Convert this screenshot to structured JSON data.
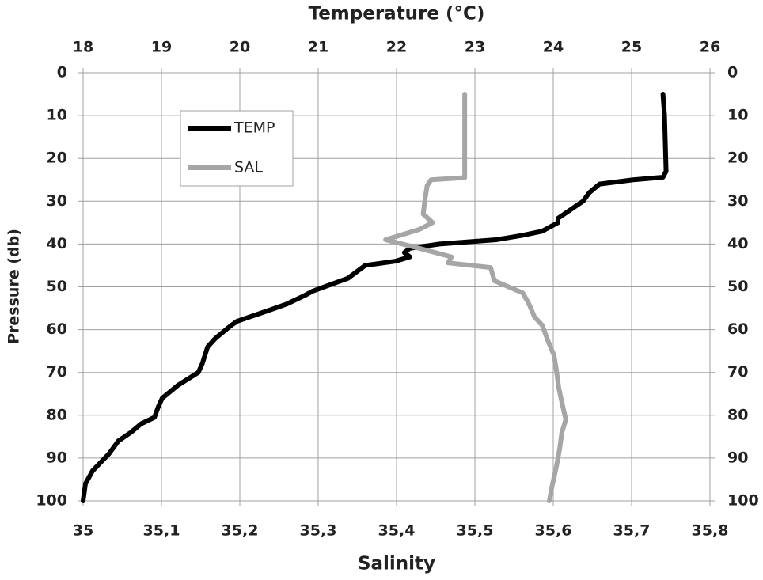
{
  "chart_data": {
    "type": "profile",
    "x_label": "Salinity",
    "x2_label": "Temperature (°C)",
    "y_label": "Pressure (db)",
    "xlim": [
      35,
      35.8
    ],
    "xticks": [
      35,
      {
        "value": 35.1,
        "label": "35,1"
      },
      {
        "value": 35.2,
        "label": "35,2"
      },
      {
        "value": 35.3,
        "label": "35,3"
      },
      {
        "value": 35.4,
        "label": "35,4"
      },
      {
        "value": 35.5,
        "label": "35,5"
      },
      {
        "value": 35.6,
        "label": "35,6"
      },
      {
        "value": 35.7,
        "label": "35,7"
      },
      {
        "value": 35.8,
        "label": "35,8"
      }
    ],
    "x2lim": [
      18,
      26
    ],
    "x2ticks": [
      18,
      19,
      20,
      21,
      22,
      23,
      24,
      25,
      26
    ],
    "ylim": [
      0,
      100
    ],
    "yticks": [
      0,
      10,
      20,
      30,
      40,
      50,
      60,
      70,
      80,
      90,
      100
    ],
    "y_inverted": true,
    "grid": true,
    "series": [
      {
        "name": "TEMP",
        "color": "#000000",
        "axis": "x2",
        "pressure": [
          5,
          10,
          23,
          24.4,
          25,
          26,
          28,
          30,
          34,
          35,
          37,
          38,
          39,
          40,
          41,
          42,
          43,
          44,
          45,
          48,
          49,
          51,
          52,
          54,
          55.5,
          58,
          59,
          62,
          64,
          68,
          70,
          73,
          76,
          78,
          80.5,
          82,
          84,
          86,
          89,
          93,
          96,
          100
        ],
        "values": [
          25.4,
          25.42,
          25.44,
          25.4,
          25.02,
          24.59,
          24.46,
          24.38,
          24.06,
          24.06,
          23.86,
          23.6,
          23.27,
          22.55,
          22.17,
          22.1,
          22.17,
          21.99,
          21.6,
          21.38,
          21.23,
          20.93,
          20.83,
          20.6,
          20.37,
          19.97,
          19.89,
          19.69,
          19.59,
          19.52,
          19.47,
          19.21,
          19.01,
          18.96,
          18.91,
          18.74,
          18.61,
          18.45,
          18.33,
          18.12,
          18.03,
          18.0
        ]
      },
      {
        "name": "SAL",
        "color": "#a6a6a6",
        "axis": "x",
        "pressure": [
          5,
          24.5,
          25,
          26.4,
          30,
          33,
          35,
          36.6,
          39,
          41,
          43,
          44.4,
          45.5,
          48.6,
          51.4,
          54,
          57,
          59,
          62.5,
          66,
          69.5,
          73.6,
          77,
          81,
          84,
          88,
          92,
          97,
          100
        ],
        "values": [
          35.487,
          35.487,
          35.444,
          35.439,
          35.436,
          35.434,
          35.446,
          35.429,
          35.386,
          35.429,
          35.47,
          35.466,
          35.52,
          35.525,
          35.561,
          35.569,
          35.576,
          35.586,
          35.593,
          35.601,
          35.604,
          35.607,
          35.611,
          35.616,
          35.611,
          35.608,
          35.604,
          35.598,
          35.595
        ]
      }
    ]
  }
}
